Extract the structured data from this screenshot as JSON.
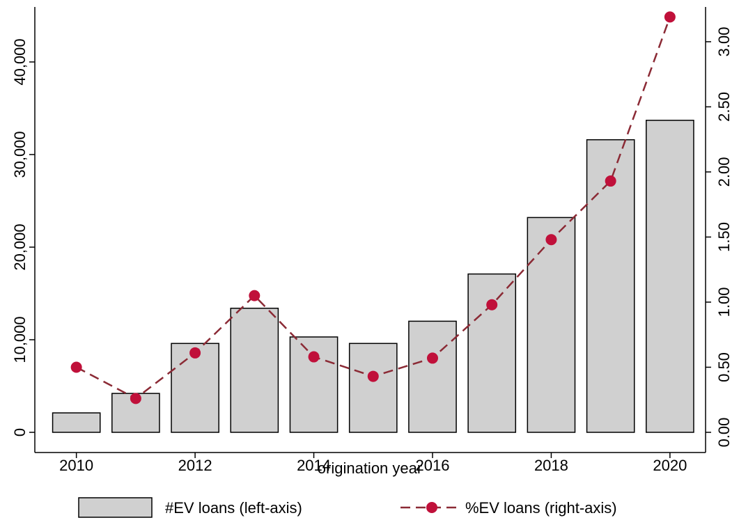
{
  "chart_data": {
    "type": "bar",
    "x_label": "origination year",
    "x": [
      2010,
      2011,
      2012,
      2013,
      2014,
      2015,
      2016,
      2017,
      2018,
      2019,
      2020
    ],
    "xlim": [
      2009.3,
      2020.6
    ],
    "xticks": [
      2010,
      2012,
      2014,
      2016,
      2018,
      2020
    ],
    "ylim": [
      -2180,
      45940
    ],
    "yticks": [
      0,
      {
        "value": 10000,
        "label": "10,000"
      },
      {
        "value": 20000,
        "label": "20,000"
      },
      {
        "value": 30000,
        "label": "30,000"
      },
      {
        "value": 40000,
        "label": "40,000"
      }
    ],
    "y2lim": [
      -0.155,
      3.267
    ],
    "y2ticks": [
      {
        "value": 0,
        "label": "0.00"
      },
      {
        "value": 0.5,
        "label": "0.50"
      },
      {
        "value": 1,
        "label": "1.00"
      },
      {
        "value": 1.5,
        "label": "1.50"
      },
      {
        "value": 2,
        "label": "2.00"
      },
      {
        "value": 2.5,
        "label": "2.50"
      },
      {
        "value": 3,
        "label": "3.00"
      }
    ],
    "series": [
      {
        "name": "#EV loans (left-axis)",
        "type": "bar",
        "color": "#d0d0d0",
        "values": [
          2100,
          4200,
          9600,
          13400,
          10300,
          9600,
          12000,
          17100,
          23200,
          31600,
          33700
        ]
      },
      {
        "name": "%EV loans (right-axis)",
        "type": "line",
        "axis": "y2",
        "color": "#c0103a",
        "values": [
          0.5,
          0.26,
          0.61,
          1.05,
          0.58,
          0.43,
          0.57,
          0.98,
          1.48,
          1.93,
          3.19
        ]
      }
    ]
  }
}
